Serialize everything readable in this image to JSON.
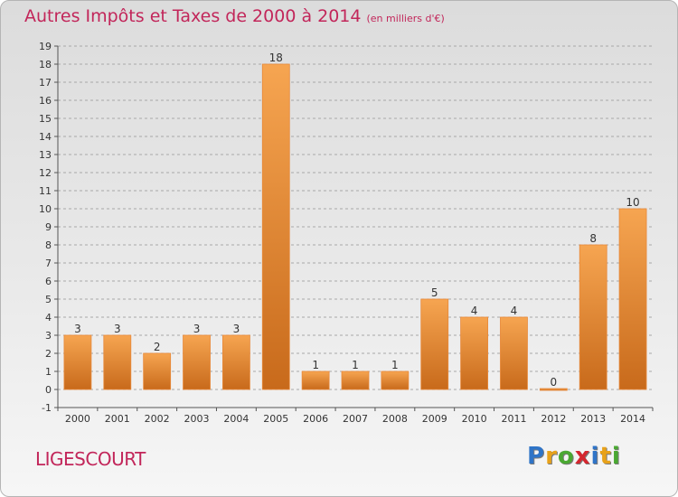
{
  "header": {
    "title": "Autres Impôts et Taxes de 2000 à 2014",
    "unit": "(en milliers d'€)"
  },
  "commune": "LIGESCOURT",
  "brand": {
    "letters": [
      "P",
      "r",
      "o",
      "x",
      "i",
      "t",
      "i"
    ],
    "colors": [
      "#2f74c7",
      "#e8a21a",
      "#4aa832",
      "#d4272f",
      "#2f74c7",
      "#e8a21a",
      "#4aa832"
    ]
  },
  "colors": {
    "title": "#c2265a",
    "bar_light": "#f6a551",
    "bar_dark": "#c86a1b",
    "grid": "#a8a8a8",
    "axis_text": "#333333"
  },
  "chart_data": {
    "type": "bar",
    "title": "Autres Impôts et Taxes de 2000 à 2014",
    "subtitle": "(en milliers d'€)",
    "categories": [
      "2000",
      "2001",
      "2002",
      "2003",
      "2004",
      "2005",
      "2006",
      "2007",
      "2008",
      "2009",
      "2010",
      "2011",
      "2012",
      "2013",
      "2014"
    ],
    "values": [
      3,
      3,
      2,
      3,
      3,
      18,
      1,
      1,
      1,
      5,
      4,
      4,
      0,
      8,
      10
    ],
    "data_labels": [
      "3",
      "3",
      "2",
      "3",
      "3",
      "18",
      "1",
      "1",
      "1",
      "5",
      "4",
      "4",
      "0",
      "8",
      "10"
    ],
    "ylim": [
      -1,
      19
    ],
    "y_ticks": [
      "-1",
      "0",
      "1",
      "2",
      "3",
      "4",
      "5",
      "6",
      "7",
      "8",
      "9",
      "10",
      "11",
      "12",
      "13",
      "14",
      "15",
      "16",
      "17",
      "18",
      "19"
    ],
    "grid": "horizontal dashed",
    "legend": "none"
  }
}
